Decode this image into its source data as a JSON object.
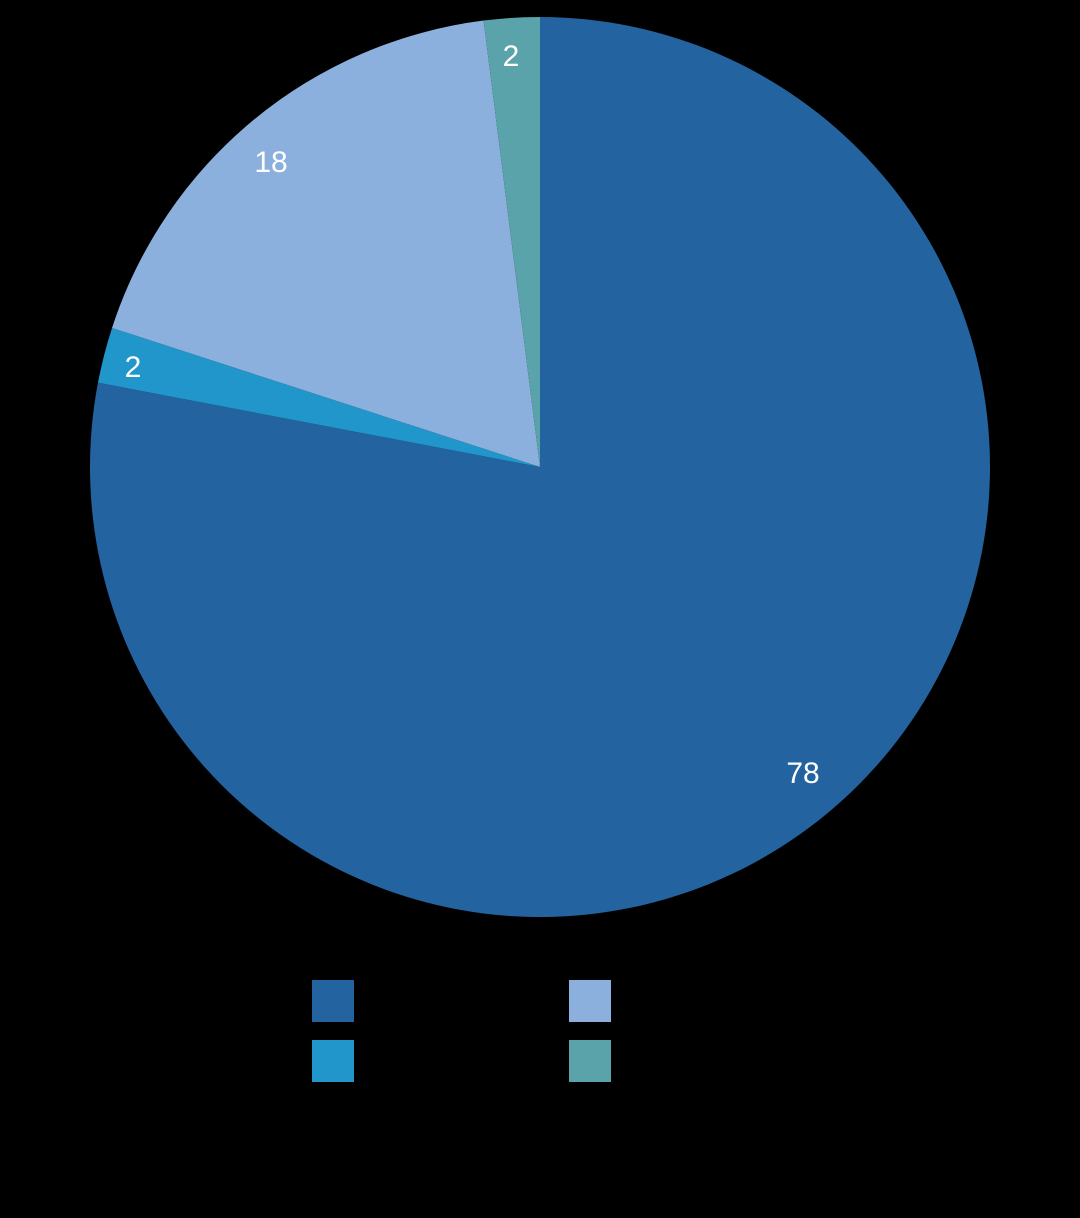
{
  "chart_data": {
    "type": "pie",
    "start": "top",
    "direction": "clockwise",
    "slices": [
      {
        "value": 78,
        "label": "78",
        "color": "#23639f",
        "legend": ""
      },
      {
        "value": 2,
        "label": "2",
        "color": "#2196cb",
        "legend": ""
      },
      {
        "value": 18,
        "label": "18",
        "color": "#8cb0dd",
        "legend": ""
      },
      {
        "value": 2,
        "label": "2",
        "color": "#5ba3ab",
        "legend": ""
      }
    ],
    "legend": {
      "placement": "bottom",
      "columns": 2
    },
    "background": "#000000"
  }
}
